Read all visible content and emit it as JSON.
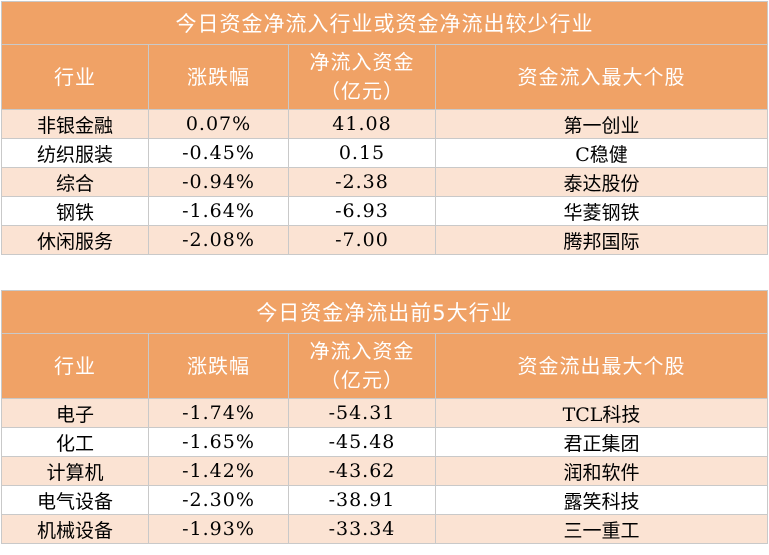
{
  "table_inflow": {
    "title": "今日资金净流入行业或资金净流出较少行业",
    "headers": [
      "行业",
      "涨跌幅",
      "净流入资金\n（亿元）",
      "资金流入最大个股"
    ],
    "rows": [
      [
        "非银金融",
        "0.07%",
        "41.08",
        "第一创业"
      ],
      [
        "纺织服装",
        "-0.45%",
        "0.15",
        "C稳健"
      ],
      [
        "综合",
        "-0.94%",
        "-2.38",
        "泰达股份"
      ],
      [
        "钢铁",
        "-1.64%",
        "-6.93",
        "华菱钢铁"
      ],
      [
        "休闲服务",
        "-2.08%",
        "-7.00",
        "腾邦国际"
      ]
    ]
  },
  "table_outflow": {
    "title": "今日资金净流出前5大行业",
    "headers": [
      "行业",
      "涨跌幅",
      "净流入资金\n（亿元）",
      "资金流出最大个股"
    ],
    "rows": [
      [
        "电子",
        "-1.74%",
        "-54.31",
        "TCL科技"
      ],
      [
        "化工",
        "-1.65%",
        "-45.48",
        "君正集团"
      ],
      [
        "计算机",
        "-1.42%",
        "-43.62",
        "润和软件"
      ],
      [
        "电气设备",
        "-2.30%",
        "-38.91",
        "露笑科技"
      ],
      [
        "机械设备",
        "-1.93%",
        "-33.34",
        "三一重工"
      ]
    ]
  }
}
